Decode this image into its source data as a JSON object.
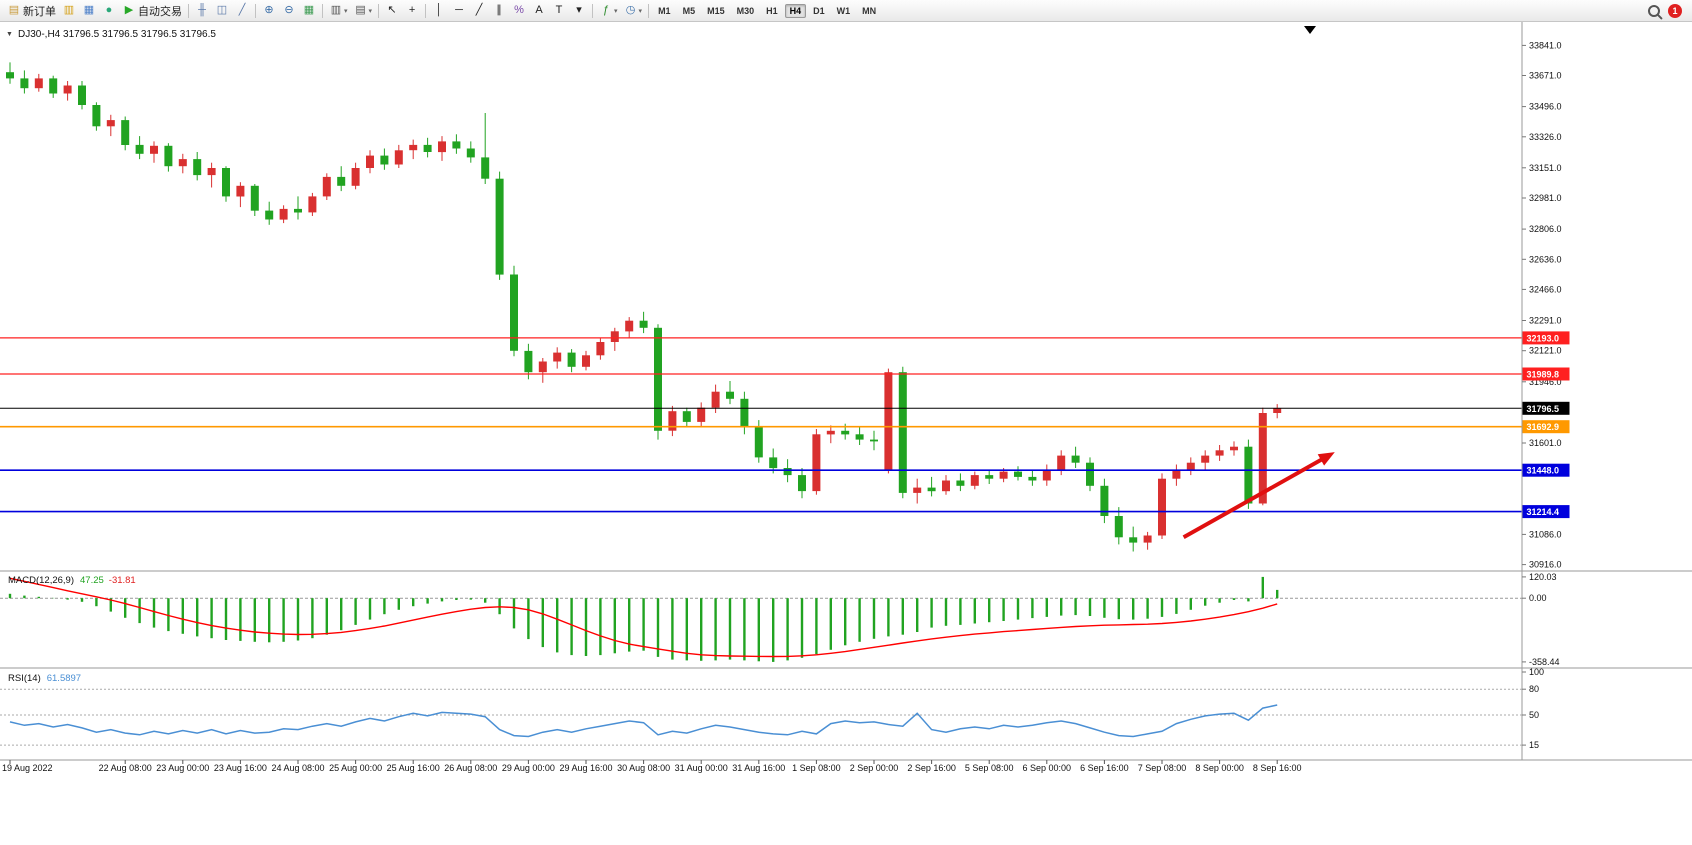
{
  "window": {
    "notification_count": "1"
  },
  "toolbar": {
    "new_order_label": "新订单",
    "auto_trading_label": "自动交易",
    "timeframes": [
      "M1",
      "M5",
      "M15",
      "M30",
      "H1",
      "H4",
      "D1",
      "W1",
      "MN"
    ],
    "active_timeframe": "H4",
    "icons": [
      {
        "n": "new-order-button",
        "g": "▤",
        "c": "#c89a3a",
        "l": "新订单"
      },
      {
        "n": "profiles-icon",
        "g": "▥",
        "c": "#d4a017"
      },
      {
        "n": "print-preview-icon",
        "g": "▦",
        "c": "#4a7ec8"
      },
      {
        "n": "refresh-icon",
        "g": "●",
        "c": "#2aa87a"
      },
      {
        "n": "auto-trading-button",
        "g": "▶",
        "c": "#28a828",
        "l": "自动交易"
      },
      {
        "sep": true
      },
      {
        "n": "bar-chart-icon",
        "g": "╫",
        "c": "#5a78a8"
      },
      {
        "n": "candlestick-chart-icon",
        "g": "◫",
        "c": "#5a78a8"
      },
      {
        "n": "line-chart-icon",
        "g": "╱",
        "c": "#5a78a8"
      },
      {
        "sep": true
      },
      {
        "n": "zoom-in-icon",
        "g": "⊕",
        "c": "#3a6ea8"
      },
      {
        "n": "zoom-out-icon",
        "g": "⊖",
        "c": "#3a6ea8"
      },
      {
        "n": "tile-windows-icon",
        "g": "▦",
        "c": "#3a9a50"
      },
      {
        "sep": true
      },
      {
        "n": "new-chart-icon",
        "g": "▥",
        "c": "#555",
        "dd": true
      },
      {
        "n": "chart-profiles-icon",
        "g": "▤",
        "c": "#555",
        "dd": true
      },
      {
        "sep": true
      },
      {
        "n": "cursor-icon",
        "g": "↖",
        "c": "#222"
      },
      {
        "n": "crosshair-icon",
        "g": "+",
        "c": "#222"
      },
      {
        "sep": true
      },
      {
        "n": "vertical-line-icon",
        "g": "│",
        "c": "#222"
      },
      {
        "n": "horizontal-line-icon",
        "g": "─",
        "c": "#222"
      },
      {
        "n": "trendline-icon",
        "g": "╱",
        "c": "#222"
      },
      {
        "n": "equidistant-channel-icon",
        "g": "∥",
        "c": "#222"
      },
      {
        "n": "fibonacci-icon",
        "g": "%",
        "c": "#7a4aa8"
      },
      {
        "n": "text-icon",
        "g": "A",
        "c": "#222"
      },
      {
        "n": "text-label-icon",
        "g": "T",
        "c": "#222"
      },
      {
        "n": "arrows-icon",
        "g": "▾",
        "c": "#222"
      },
      {
        "sep": true
      },
      {
        "n": "indicators-icon",
        "g": "ƒ",
        "c": "#2a8a2a",
        "dd": true
      },
      {
        "n": "periods-icon",
        "g": "◷",
        "c": "#3a6ea8",
        "dd": true
      },
      {
        "sep": true
      }
    ]
  },
  "chart": {
    "header": "DJ30-,H4  31796.5 31796.5 31796.5 31796.5",
    "collapse_glyph": "▼",
    "symbol": "DJ30-",
    "period": "H4"
  },
  "indicators": {
    "macd": {
      "name": "MACD(12,26,9)",
      "value": "47.25",
      "signal": "-31.81"
    },
    "rsi": {
      "name": "RSI(14)",
      "value": "61.5897"
    }
  },
  "chart_data": [
    {
      "type": "candlestick",
      "title": "DJ30-,H4",
      "up_color": "#d93030",
      "down_color": "#21a321",
      "current_price": 31796.5,
      "ylim": [
        30880,
        33950
      ],
      "candles": [
        [
          33690,
          33745,
          33625,
          33655
        ],
        [
          33655,
          33700,
          33570,
          33600
        ],
        [
          33600,
          33680,
          33580,
          33655
        ],
        [
          33655,
          33670,
          33545,
          33570
        ],
        [
          33570,
          33640,
          33530,
          33615
        ],
        [
          33615,
          33640,
          33480,
          33505
        ],
        [
          33505,
          33520,
          33360,
          33385
        ],
        [
          33385,
          33450,
          33330,
          33420
        ],
        [
          33420,
          33440,
          33250,
          33280
        ],
        [
          33280,
          33330,
          33200,
          33230
        ],
        [
          33230,
          33300,
          33180,
          33275
        ],
        [
          33275,
          33290,
          33130,
          33160
        ],
        [
          33160,
          33230,
          33120,
          33200
        ],
        [
          33200,
          33240,
          33080,
          33110
        ],
        [
          33110,
          33180,
          33040,
          33150
        ],
        [
          33150,
          33160,
          32960,
          32990
        ],
        [
          32990,
          33070,
          32930,
          33050
        ],
        [
          33050,
          33060,
          32880,
          32910
        ],
        [
          32910,
          32960,
          32830,
          32860
        ],
        [
          32860,
          32940,
          32840,
          32920
        ],
        [
          32920,
          32990,
          32860,
          32900
        ],
        [
          32900,
          33010,
          32880,
          32990
        ],
        [
          32990,
          33120,
          32970,
          33100
        ],
        [
          33100,
          33160,
          33020,
          33050
        ],
        [
          33050,
          33180,
          33030,
          33150
        ],
        [
          33150,
          33250,
          33120,
          33220
        ],
        [
          33220,
          33260,
          33140,
          33170
        ],
        [
          33170,
          33280,
          33150,
          33250
        ],
        [
          33250,
          33310,
          33200,
          33280
        ],
        [
          33280,
          33320,
          33210,
          33240
        ],
        [
          33240,
          33330,
          33190,
          33300
        ],
        [
          33300,
          33340,
          33230,
          33260
        ],
        [
          33260,
          33300,
          33180,
          33210
        ],
        [
          33210,
          33460,
          33060,
          33090
        ],
        [
          33090,
          33130,
          32520,
          32550
        ],
        [
          32550,
          32600,
          32090,
          32120
        ],
        [
          32120,
          32160,
          31960,
          32000
        ],
        [
          32000,
          32080,
          31940,
          32060
        ],
        [
          32060,
          32140,
          32020,
          32110
        ],
        [
          32110,
          32130,
          32000,
          32030
        ],
        [
          32030,
          32120,
          32010,
          32095
        ],
        [
          32095,
          32190,
          32070,
          32170
        ],
        [
          32170,
          32250,
          32120,
          32230
        ],
        [
          32230,
          32310,
          32190,
          32290
        ],
        [
          32290,
          32340,
          32220,
          32250
        ],
        [
          32250,
          32270,
          31620,
          31670
        ],
        [
          31670,
          31810,
          31640,
          31780
        ],
        [
          31780,
          31800,
          31690,
          31720
        ],
        [
          31720,
          31830,
          31690,
          31800
        ],
        [
          31800,
          31930,
          31770,
          31890
        ],
        [
          31890,
          31950,
          31820,
          31850
        ],
        [
          31850,
          31890,
          31650,
          31690
        ],
        [
          31690,
          31730,
          31490,
          31520
        ],
        [
          31520,
          31570,
          31430,
          31460
        ],
        [
          31460,
          31510,
          31380,
          31420
        ],
        [
          31420,
          31460,
          31290,
          31330
        ],
        [
          31330,
          31680,
          31310,
          31650
        ],
        [
          31650,
          31700,
          31600,
          31670
        ],
        [
          31670,
          31710,
          31620,
          31650
        ],
        [
          31650,
          31690,
          31590,
          31620
        ],
        [
          31620,
          31670,
          31560,
          31610
        ],
        [
          31450,
          32020,
          31430,
          32000
        ],
        [
          32000,
          32030,
          31290,
          31320
        ],
        [
          31320,
          31400,
          31260,
          31350
        ],
        [
          31350,
          31410,
          31300,
          31330
        ],
        [
          31330,
          31420,
          31310,
          31390
        ],
        [
          31390,
          31430,
          31330,
          31360
        ],
        [
          31360,
          31440,
          31340,
          31420
        ],
        [
          31420,
          31450,
          31370,
          31400
        ],
        [
          31400,
          31460,
          31380,
          31440
        ],
        [
          31440,
          31470,
          31390,
          31410
        ],
        [
          31410,
          31450,
          31360,
          31390
        ],
        [
          31390,
          31480,
          31360,
          31450
        ],
        [
          31450,
          31560,
          31420,
          31530
        ],
        [
          31530,
          31580,
          31460,
          31490
        ],
        [
          31490,
          31520,
          31330,
          31360
        ],
        [
          31360,
          31400,
          31150,
          31190
        ],
        [
          31190,
          31240,
          31030,
          31070
        ],
        [
          31070,
          31130,
          30990,
          31040
        ],
        [
          31040,
          31100,
          31000,
          31080
        ],
        [
          31080,
          31430,
          31060,
          31400
        ],
        [
          31400,
          31480,
          31360,
          31450
        ],
        [
          31450,
          31520,
          31420,
          31490
        ],
        [
          31490,
          31560,
          31450,
          31530
        ],
        [
          31530,
          31590,
          31500,
          31560
        ],
        [
          31560,
          31610,
          31530,
          31580
        ],
        [
          31580,
          31620,
          31230,
          31260
        ],
        [
          31260,
          31800,
          31250,
          31770
        ],
        [
          31770,
          31820,
          31740,
          31796.5
        ]
      ],
      "price_lines": [
        {
          "value": 32193.0,
          "label": "32193.0",
          "color": "#ff2020",
          "width": 1.2
        },
        {
          "value": 31989.8,
          "label": "31989.8",
          "color": "#ff2020",
          "width": 1.2
        },
        {
          "value": 31796.5,
          "label": "31796.5",
          "color": "#000000",
          "width": 1
        },
        {
          "value": 31692.9,
          "label": "31692.9",
          "color": "#ff9900",
          "width": 1.6
        },
        {
          "value": 31448.0,
          "label": "31448.0",
          "color": "#0000dd",
          "width": 1.6
        },
        {
          "value": 31214.4,
          "label": "31214.4",
          "color": "#0000dd",
          "width": 1.6
        }
      ],
      "y_axis_labels": [
        33841.0,
        33671.0,
        33496.0,
        33326.0,
        33151.0,
        32981.0,
        32806.0,
        32636.0,
        32466.0,
        32291.0,
        32121.0,
        31946.0,
        31601.0,
        31086.0,
        30916.0
      ],
      "x_labels": [
        {
          "text": "19 Aug 2022",
          "bar": 0
        },
        {
          "text": "22 Aug 08:00",
          "bar": 8
        },
        {
          "text": "23 Aug 00:00",
          "bar": 12
        },
        {
          "text": "23 Aug 16:00",
          "bar": 16
        },
        {
          "text": "24 Aug 08:00",
          "bar": 20
        },
        {
          "text": "25 Aug 00:00",
          "bar": 24
        },
        {
          "text": "25 Aug 16:00",
          "bar": 28
        },
        {
          "text": "26 Aug 08:00",
          "bar": 32
        },
        {
          "text": "29 Aug 00:00",
          "bar": 36
        },
        {
          "text": "29 Aug 16:00",
          "bar": 40
        },
        {
          "text": "30 Aug 08:00",
          "bar": 44
        },
        {
          "text": "31 Aug 00:00",
          "bar": 48
        },
        {
          "text": "31 Aug 16:00",
          "bar": 52
        },
        {
          "text": "1 Sep 08:00",
          "bar": 56
        },
        {
          "text": "2 Sep 00:00",
          "bar": 60
        },
        {
          "text": "2 Sep 16:00",
          "bar": 64
        },
        {
          "text": "5 Sep 08:00",
          "bar": 68
        },
        {
          "text": "6 Sep 00:00",
          "bar": 72
        },
        {
          "text": "6 Sep 16:00",
          "bar": 76
        },
        {
          "text": "7 Sep 08:00",
          "bar": 80
        },
        {
          "text": "8 Sep 00:00",
          "bar": 84
        },
        {
          "text": "8 Sep 16:00",
          "bar": 88
        }
      ],
      "annotations": [
        {
          "type": "arrow",
          "from_bar": 81.5,
          "from_price": 31070,
          "to_bar": 92,
          "to_price": 31550,
          "color": "#e01010"
        }
      ]
    },
    {
      "type": "bar",
      "name": "MACD(12,26,9)",
      "value": 47.25,
      "signal_value": -31.81,
      "histogram_color": "#21a321",
      "signal_color": "#ff0000",
      "ylim": [
        -370,
        125
      ],
      "histogram": [
        25,
        15,
        8,
        2,
        -8,
        -20,
        -45,
        -75,
        -110,
        -140,
        -165,
        -185,
        -200,
        -215,
        -225,
        -235,
        -240,
        -245,
        -248,
        -245,
        -238,
        -225,
        -205,
        -180,
        -150,
        -120,
        -90,
        -65,
        -45,
        -30,
        -18,
        -10,
        -8,
        -25,
        -90,
        -170,
        -230,
        -275,
        -305,
        -320,
        -325,
        -320,
        -310,
        -300,
        -295,
        -330,
        -345,
        -350,
        -352,
        -350,
        -345,
        -350,
        -355,
        -358,
        -350,
        -335,
        -315,
        -290,
        -265,
        -245,
        -228,
        -215,
        -205,
        -190,
        -165,
        -155,
        -150,
        -142,
        -135,
        -128,
        -120,
        -112,
        -105,
        -98,
        -95,
        -100,
        -110,
        -118,
        -120,
        -115,
        -105,
        -88,
        -65,
        -42,
        -25,
        -10,
        -18,
        120,
        47
      ],
      "signal": [
        112,
        95,
        78,
        60,
        42,
        25,
        8,
        -10,
        -30,
        -52,
        -75,
        -97,
        -118,
        -137,
        -154,
        -168,
        -180,
        -190,
        -197,
        -202,
        -204,
        -203,
        -199,
        -192,
        -182,
        -170,
        -156,
        -140,
        -123,
        -106,
        -90,
        -75,
        -62,
        -52,
        -48,
        -52,
        -65,
        -88,
        -118,
        -150,
        -182,
        -212,
        -238,
        -258,
        -272,
        -285,
        -298,
        -310,
        -318,
        -323,
        -325,
        -326,
        -327,
        -328,
        -327,
        -324,
        -318,
        -310,
        -300,
        -288,
        -276,
        -264,
        -252,
        -240,
        -229,
        -219,
        -210,
        -202,
        -195,
        -188,
        -182,
        -176,
        -170,
        -164,
        -159,
        -155,
        -152,
        -150,
        -148,
        -146,
        -142,
        -136,
        -128,
        -118,
        -106,
        -92,
        -76,
        -56,
        -32
      ],
      "axis_labels": [
        {
          "text": "120.03",
          "value": 120.03
        },
        {
          "text": "0.00",
          "value": 0
        },
        {
          "text": "-358.44",
          "value": -358.44
        }
      ]
    },
    {
      "type": "line",
      "name": "RSI(14)",
      "value": 61.5897,
      "line_color": "#4a8fd4",
      "ylim": [
        0,
        100
      ],
      "levels": [
        80,
        50,
        15
      ],
      "values": [
        42,
        38,
        40,
        36,
        39,
        35,
        30,
        33,
        29,
        27,
        31,
        28,
        32,
        29,
        33,
        28,
        32,
        29,
        30,
        34,
        33,
        37,
        40,
        37,
        42,
        46,
        43,
        48,
        52,
        49,
        53,
        52,
        51,
        48,
        33,
        26,
        25,
        30,
        33,
        30,
        34,
        37,
        40,
        43,
        41,
        27,
        31,
        29,
        34,
        38,
        36,
        33,
        30,
        28,
        27,
        31,
        28,
        40,
        43,
        41,
        42,
        39,
        37,
        52,
        33,
        30,
        34,
        36,
        34,
        38,
        36,
        38,
        41,
        43,
        40,
        35,
        30,
        26,
        25,
        28,
        31,
        40,
        45,
        49,
        51,
        52,
        44,
        58,
        61.59
      ],
      "axis_labels": [
        {
          "text": "100",
          "value": 100
        },
        {
          "text": "80",
          "value": 80
        },
        {
          "text": "50",
          "value": 50
        },
        {
          "text": "15",
          "value": 15
        }
      ]
    }
  ]
}
